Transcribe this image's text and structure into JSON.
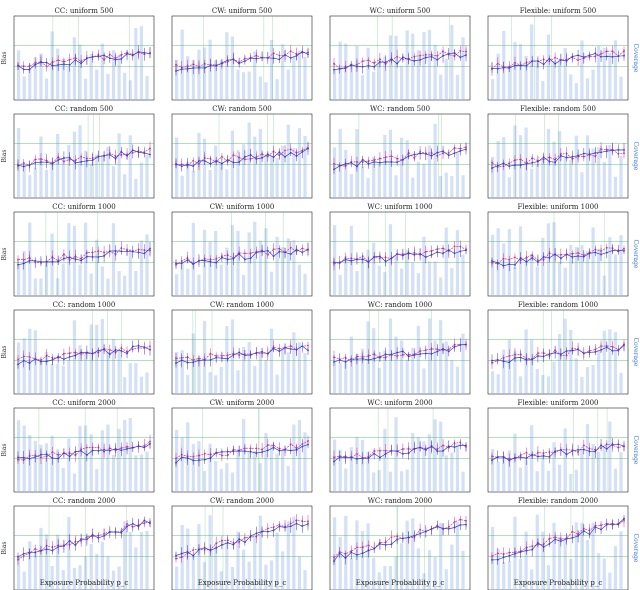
{
  "figure": {
    "x_axis_label": "Exposure Probability p_c",
    "left_axis_label": "Bias",
    "right_axis_label": "Coverage"
  },
  "colors": {
    "bias_series": "#d8338a",
    "est_series": "#3a3acb",
    "coverage_bars": "#9dbbe8",
    "reference_lines": "#2ea043",
    "axis": "#222222",
    "right_axis": "#3a78c9"
  },
  "chart_data": [
    {
      "row": 0,
      "col": 0,
      "title": "CC: uniform 500",
      "n": 500,
      "design": "uniform"
    },
    {
      "row": 0,
      "col": 1,
      "title": "CW: uniform 500",
      "n": 500,
      "design": "uniform"
    },
    {
      "row": 0,
      "col": 2,
      "title": "WC: uniform 500",
      "n": 500,
      "design": "uniform"
    },
    {
      "row": 0,
      "col": 3,
      "title": "Flexible: uniform 500",
      "n": 500,
      "design": "uniform"
    },
    {
      "row": 1,
      "col": 0,
      "title": "CC: random 500",
      "n": 500,
      "design": "random"
    },
    {
      "row": 1,
      "col": 1,
      "title": "CW: random 500",
      "n": 500,
      "design": "random"
    },
    {
      "row": 1,
      "col": 2,
      "title": "WC: random 500",
      "n": 500,
      "design": "random"
    },
    {
      "row": 1,
      "col": 3,
      "title": "Flexible: random 500",
      "n": 500,
      "design": "random"
    },
    {
      "row": 2,
      "col": 0,
      "title": "CC: uniform 1000",
      "n": 1000,
      "design": "uniform"
    },
    {
      "row": 2,
      "col": 1,
      "title": "CW: uniform 1000",
      "n": 1000,
      "design": "uniform"
    },
    {
      "row": 2,
      "col": 2,
      "title": "WC: uniform 1000",
      "n": 1000,
      "design": "uniform"
    },
    {
      "row": 2,
      "col": 3,
      "title": "Flexible: uniform 1000",
      "n": 1000,
      "design": "uniform"
    },
    {
      "row": 3,
      "col": 0,
      "title": "CC: random 1000",
      "n": 1000,
      "design": "random"
    },
    {
      "row": 3,
      "col": 1,
      "title": "CW: random 1000",
      "n": 1000,
      "design": "random"
    },
    {
      "row": 3,
      "col": 2,
      "title": "WC: random 1000",
      "n": 1000,
      "design": "random"
    },
    {
      "row": 3,
      "col": 3,
      "title": "Flexible: random 1000",
      "n": 1000,
      "design": "random"
    },
    {
      "row": 4,
      "col": 0,
      "title": "CC: uniform 2000",
      "n": 2000,
      "design": "uniform"
    },
    {
      "row": 4,
      "col": 1,
      "title": "CW: uniform 2000",
      "n": 2000,
      "design": "uniform"
    },
    {
      "row": 4,
      "col": 2,
      "title": "WC: uniform 2000",
      "n": 2000,
      "design": "uniform"
    },
    {
      "row": 4,
      "col": 3,
      "title": "Flexible: uniform 2000",
      "n": 2000,
      "design": "uniform"
    },
    {
      "row": 5,
      "col": 0,
      "title": "CC: random 2000",
      "n": 2000,
      "design": "random"
    },
    {
      "row": 5,
      "col": 1,
      "title": "CW: random 2000",
      "n": 2000,
      "design": "random"
    },
    {
      "row": 5,
      "col": 2,
      "title": "WC: random 2000",
      "n": 2000,
      "design": "random"
    },
    {
      "row": 5,
      "col": 3,
      "title": "Flexible: random 2000",
      "n": 2000,
      "design": "random"
    }
  ]
}
